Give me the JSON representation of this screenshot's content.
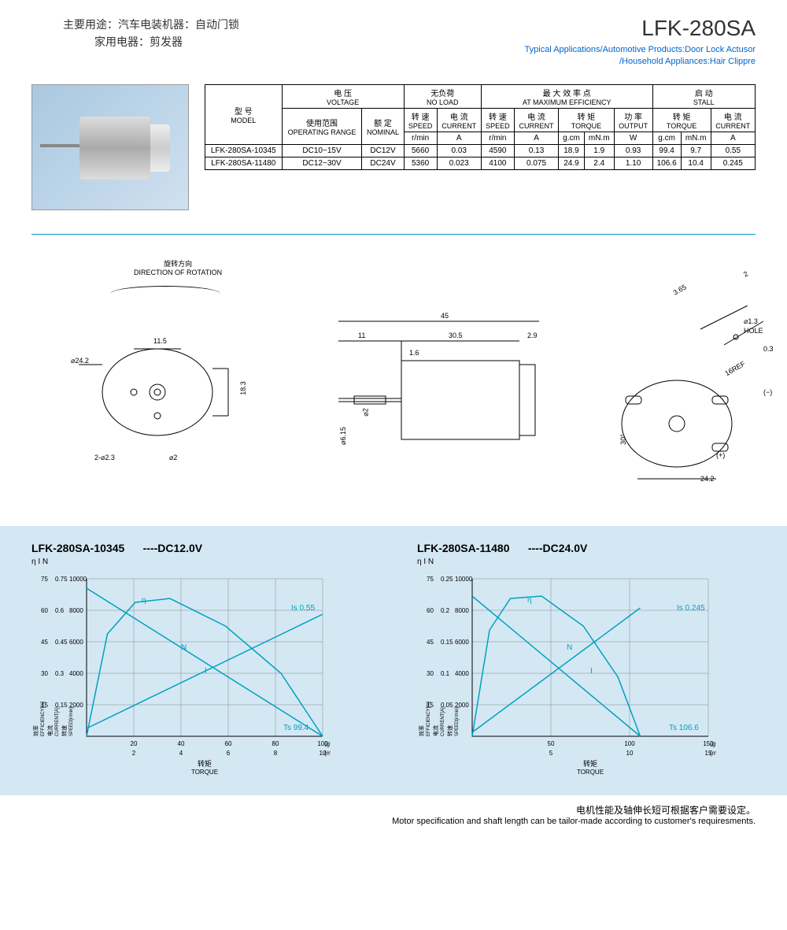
{
  "header": {
    "cn_line1": "主要用途：汽车电装机器：自动门锁",
    "cn_line2": "家用电器：剪发器",
    "model_title": "LFK-280SA",
    "apps_line1": "Typical Applications/Automotive Products:Door Lock Actusor",
    "apps_line2": "/Household Appliances:Hair Clippre"
  },
  "table": {
    "headers": {
      "model_cn": "型 号",
      "model_en": "MODEL",
      "voltage_cn": "电 压",
      "voltage_en": "VOLTAGE",
      "noload_cn": "无负荷",
      "noload_en": "NO LOAD",
      "maxeff_cn": "最 大 效 率 点",
      "maxeff_en": "AT MAXIMUM EFFICIENCY",
      "stall_cn": "启 动",
      "stall_en": "STALL",
      "oprange_cn": "使用范围",
      "oprange_en": "OPERATING RANGE",
      "nominal_cn": "额 定",
      "nominal_en": "NOMINAL",
      "speed_cn": "转 速",
      "speed_en": "SPEED",
      "current_cn": "电 流",
      "current_en": "CURRENT",
      "torque_cn": "转 矩",
      "torque_en": "TORQUE",
      "output_cn": "功 率",
      "output_en": "OUTPUT",
      "rmin": "r/min",
      "amp": "A",
      "gcm": "g.cm",
      "mnm": "mN.m",
      "watt": "W"
    },
    "rows": [
      {
        "model": "LFK-280SA-10345",
        "range": "DC10~15V",
        "nominal": "DC12V",
        "nl_speed": "5660",
        "nl_current": "0.03",
        "me_speed": "4590",
        "me_current": "0.13",
        "me_gcm": "18.9",
        "me_mnm": "1.9",
        "me_w": "0.93",
        "st_gcm": "99.4",
        "st_mnm": "9.7",
        "st_a": "0.55"
      },
      {
        "model": "LFK-280SA-11480",
        "range": "DC12~30V",
        "nominal": "DC24V",
        "nl_speed": "5360",
        "nl_current": "0.023",
        "me_speed": "4100",
        "me_current": "0.075",
        "me_gcm": "24.9",
        "me_mnm": "2.4",
        "me_w": "1.10",
        "st_gcm": "106.6",
        "st_mnm": "10.4",
        "st_a": "0.245"
      }
    ]
  },
  "drawing": {
    "rotation_cn": "旋转方向",
    "rotation_en": "DIRECTION OF ROTATION",
    "dims": {
      "d24_2": "⌀24.2",
      "d11_5": "11.5",
      "d18_3": "18.3",
      "d2_3": "2-⌀2.3",
      "d2": "⌀2",
      "l45": "45",
      "l11": "11",
      "l30_5": "30.5",
      "l2_9": "2.9",
      "l1_6": "1.6",
      "d6_15": "⌀6.15",
      "sd2": "⌀2",
      "l3_65": "3.65",
      "l2top": "2",
      "d1_3": "⌀1.3",
      "hole": "HOLE",
      "l0_3": "0.3",
      "ref16": "16REF",
      "a30": "30°",
      "w24_2": "24.2",
      "minus": "(−)",
      "plus": "(+)"
    }
  },
  "charts": [
    {
      "title": "LFK-280SA-10345",
      "voltage": "----DC12.0V",
      "ylabels": {
        "eta": "η",
        "i": "I",
        "n": "N"
      },
      "yticks_eta": [
        "75",
        "60",
        "45",
        "30",
        "15"
      ],
      "yticks_i": [
        "0.75",
        "0.6",
        "0.45",
        "0.3",
        "0.15"
      ],
      "yticks_n": [
        "10000",
        "8000",
        "6000",
        "4000",
        "2000"
      ],
      "xticks_top": [
        "20",
        "40",
        "60",
        "80",
        "100"
      ],
      "xticks_bot": [
        "2",
        "4",
        "6",
        "8",
        "10"
      ],
      "xunit_top": "(g-cm)",
      "xunit_bot": "(mN-m)",
      "xlabel_cn": "转矩",
      "xlabel_en": "TORQUE",
      "axislabels": {
        "eff_cn": "效率",
        "eff_en": "EFFICIENCY[%]",
        "cur_cn": "电流",
        "cur_en": "CURRENT[A]",
        "spd_cn": "转速",
        "spd_en": "SPEED[r/min]"
      },
      "annotations": {
        "is": "Is 0.55",
        "ts": "Ts 99.4",
        "eta": "η",
        "n": "N",
        "i": "I"
      },
      "curves": {
        "N": [
          [
            0,
            188
          ],
          [
            340,
            0
          ]
        ],
        "I": [
          [
            0,
            10
          ],
          [
            340,
            155
          ]
        ],
        "eta": [
          [
            0,
            0
          ],
          [
            30,
            130
          ],
          [
            70,
            170
          ],
          [
            120,
            175
          ],
          [
            200,
            140
          ],
          [
            280,
            80
          ],
          [
            340,
            0
          ]
        ]
      },
      "colors": {
        "line": "#00a0c0",
        "grid": "#888"
      }
    },
    {
      "title": "LFK-280SA-11480",
      "voltage": "----DC24.0V",
      "ylabels": {
        "eta": "η",
        "i": "I",
        "n": "N"
      },
      "yticks_eta": [
        "75",
        "60",
        "45",
        "30",
        "15"
      ],
      "yticks_i": [
        "0.25",
        "0.2",
        "0.15",
        "0.1",
        "0.05"
      ],
      "yticks_n": [
        "10000",
        "8000",
        "6000",
        "4000",
        "2000"
      ],
      "xticks_top": [
        "50",
        "100",
        "150"
      ],
      "xticks_bot": [
        "5",
        "10",
        "15"
      ],
      "xunit_top": "(g-cm)",
      "xunit_bot": "(mN-m)",
      "xlabel_cn": "转矩",
      "xlabel_en": "TORQUE",
      "axislabels": {
        "eff_cn": "效率",
        "eff_en": "EFFICIENCY[%]",
        "cur_cn": "电流",
        "cur_en": "CURRENT[A]",
        "spd_cn": "转速",
        "spd_en": "SPEED[r/min]"
      },
      "annotations": {
        "is": "Is 0.245",
        "ts": "Ts 106.6",
        "eta": "η",
        "n": "N",
        "i": "I"
      },
      "curves": {
        "N": [
          [
            0,
            178
          ],
          [
            242,
            0
          ]
        ],
        "I": [
          [
            0,
            5
          ],
          [
            242,
            163
          ]
        ],
        "eta": [
          [
            0,
            0
          ],
          [
            25,
            135
          ],
          [
            55,
            175
          ],
          [
            100,
            178
          ],
          [
            160,
            140
          ],
          [
            210,
            75
          ],
          [
            242,
            0
          ]
        ]
      },
      "colors": {
        "line": "#00a0c0",
        "grid": "#888"
      }
    }
  ],
  "footer": {
    "cn": "电机性能及轴伸长短可根据客户需要设定。",
    "en": "Motor specification and shaft length can be tailor-made according to customer's requiresments."
  }
}
